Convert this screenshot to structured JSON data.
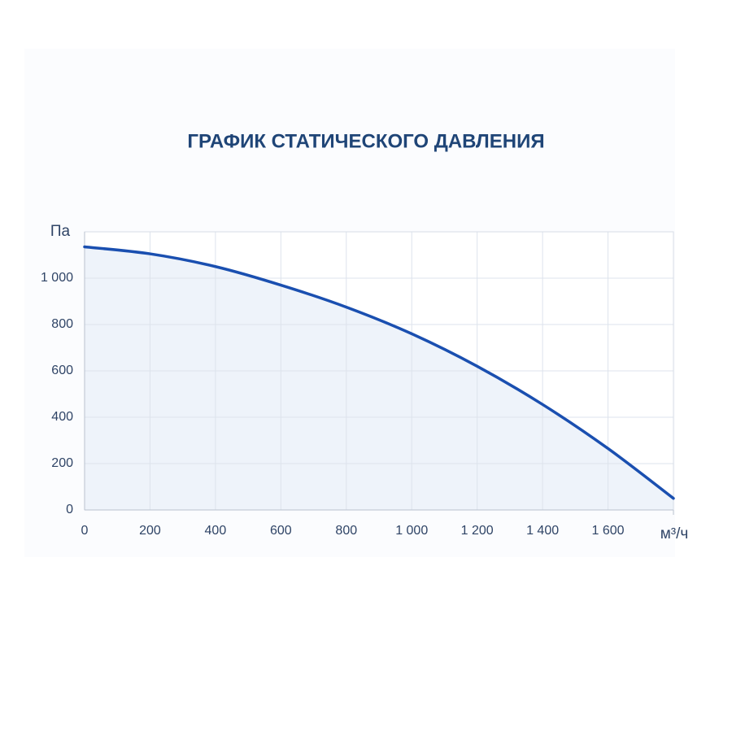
{
  "chart_data": {
    "type": "area",
    "title": "ГРАФИК СТАТИЧЕСКОГО ДАВЛЕНИЯ",
    "y_label": "Па",
    "x_label": "м³/ч",
    "x": [
      0,
      200,
      400,
      600,
      800,
      1000,
      1200,
      1400,
      1600,
      1800
    ],
    "values": [
      1135,
      1105,
      1050,
      970,
      875,
      760,
      620,
      455,
      265,
      50
    ],
    "color": "#1a4fb0",
    "fill_color": "#eef3fa",
    "xlim": [
      0,
      1800
    ],
    "ylim": [
      0,
      1200
    ],
    "xticks": [
      0,
      200,
      400,
      600,
      800,
      {
        "value": 1000,
        "label": "1 000"
      },
      {
        "value": 1200,
        "label": "1 200"
      },
      {
        "value": 1400,
        "label": "1 400"
      },
      {
        "value": 1600,
        "label": "1 600"
      }
    ],
    "yticks": [
      0,
      200,
      400,
      600,
      800,
      {
        "value": 1000,
        "label": "1 000"
      }
    ],
    "grid": true
  }
}
